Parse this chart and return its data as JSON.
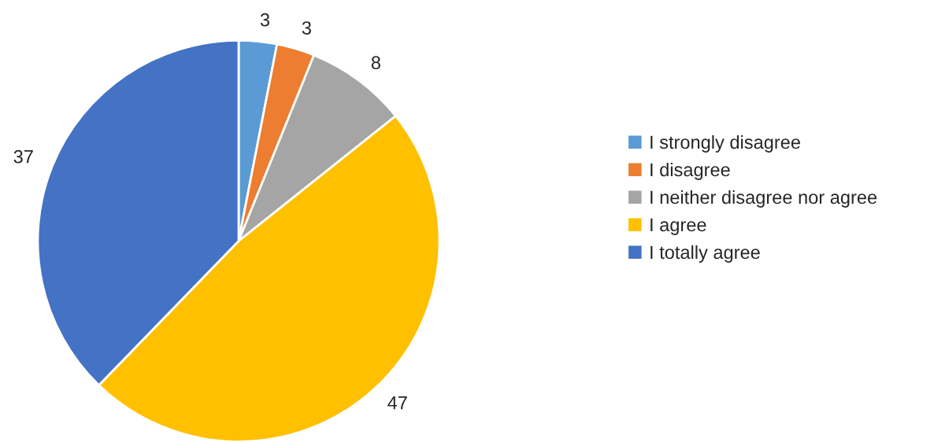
{
  "chart_data": {
    "type": "pie",
    "categories": [
      "I strongly disagree",
      "I disagree",
      "I neither disagree nor agree",
      "I agree",
      "I totally agree"
    ],
    "values": [
      3,
      3,
      8,
      47,
      37
    ],
    "colors": [
      "#5b9bd5",
      "#ed7d31",
      "#a5a5a5",
      "#ffc000",
      "#4472c4"
    ],
    "data_labels": true,
    "legend": "right"
  }
}
